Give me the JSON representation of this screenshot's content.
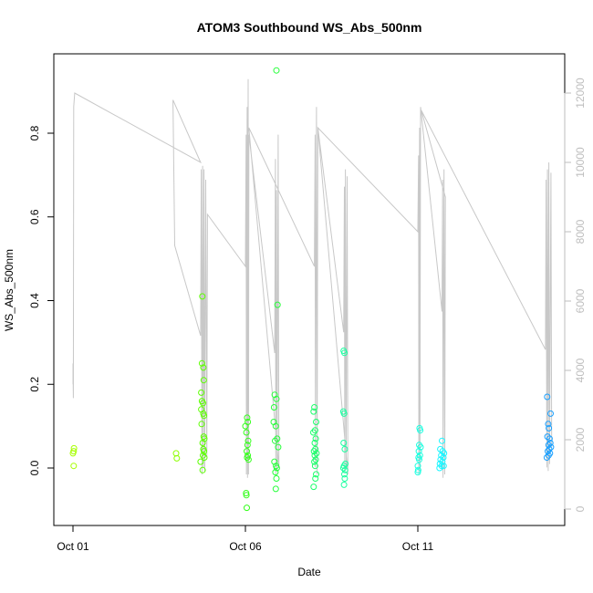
{
  "chart_data": {
    "type": "scatter",
    "title": "ATOM3 Southbound WS_Abs_500nm",
    "xlabel": "Date",
    "ylabel": "WS_Abs_500nm",
    "x_ticks": [
      {
        "day": 1,
        "label": "Oct 01"
      },
      {
        "day": 6,
        "label": "Oct 06"
      },
      {
        "day": 11,
        "label": "Oct 11"
      }
    ],
    "xlim": [
      1,
      15.5
    ],
    "ylim": [
      -0.1,
      0.95
    ],
    "y_ticks": [
      0.0,
      0.2,
      0.4,
      0.6,
      0.8
    ],
    "y2lim": [
      0,
      12000
    ],
    "y2_ticks": [
      0,
      2000,
      4000,
      6000,
      8000,
      10000,
      12000
    ],
    "y2_color": "#bebebe",
    "grid": false,
    "points": [
      {
        "x": 1.0,
        "y": 0.035,
        "c": "#a6ff00"
      },
      {
        "x": 1.02,
        "y": 0.04,
        "c": "#a6ff00"
      },
      {
        "x": 1.03,
        "y": 0.047,
        "c": "#a6ff00"
      },
      {
        "x": 1.02,
        "y": 0.005,
        "c": "#a6ff00"
      },
      {
        "x": 3.99,
        "y": 0.035,
        "c": "#8cff00"
      },
      {
        "x": 4.01,
        "y": 0.023,
        "c": "#8cff00"
      },
      {
        "x": 4.7,
        "y": 0.015,
        "c": "#5cff00"
      },
      {
        "x": 4.75,
        "y": 0.41,
        "c": "#5cff00"
      },
      {
        "x": 4.74,
        "y": 0.25,
        "c": "#5cff00"
      },
      {
        "x": 4.78,
        "y": 0.24,
        "c": "#5cff00"
      },
      {
        "x": 4.79,
        "y": 0.21,
        "c": "#5cff00"
      },
      {
        "x": 4.72,
        "y": 0.18,
        "c": "#5cff00"
      },
      {
        "x": 4.74,
        "y": 0.16,
        "c": "#5cff00"
      },
      {
        "x": 4.77,
        "y": 0.155,
        "c": "#5cff00"
      },
      {
        "x": 4.72,
        "y": 0.14,
        "c": "#5cff00"
      },
      {
        "x": 4.78,
        "y": 0.13,
        "c": "#5cff00"
      },
      {
        "x": 4.8,
        "y": 0.125,
        "c": "#5cff00"
      },
      {
        "x": 4.73,
        "y": 0.105,
        "c": "#5cff00"
      },
      {
        "x": 4.79,
        "y": 0.075,
        "c": "#5cff00"
      },
      {
        "x": 4.81,
        "y": 0.07,
        "c": "#5cff00"
      },
      {
        "x": 4.76,
        "y": 0.06,
        "c": "#5cff00"
      },
      {
        "x": 4.78,
        "y": 0.045,
        "c": "#5cff00"
      },
      {
        "x": 4.8,
        "y": 0.04,
        "c": "#5cff00"
      },
      {
        "x": 4.77,
        "y": 0.03,
        "c": "#5cff00"
      },
      {
        "x": 4.81,
        "y": 0.025,
        "c": "#5cff00"
      },
      {
        "x": 4.76,
        "y": -0.005,
        "c": "#5cff00"
      },
      {
        "x": 6.0,
        "y": 0.1,
        "c": "#33ff1a"
      },
      {
        "x": 6.05,
        "y": 0.12,
        "c": "#33ff1a"
      },
      {
        "x": 6.07,
        "y": 0.11,
        "c": "#33ff1a"
      },
      {
        "x": 6.03,
        "y": 0.085,
        "c": "#33ff1a"
      },
      {
        "x": 6.08,
        "y": 0.065,
        "c": "#33ff1a"
      },
      {
        "x": 6.06,
        "y": 0.055,
        "c": "#33ff1a"
      },
      {
        "x": 6.04,
        "y": 0.04,
        "c": "#33ff1a"
      },
      {
        "x": 6.07,
        "y": 0.03,
        "c": "#33ff1a"
      },
      {
        "x": 6.05,
        "y": 0.025,
        "c": "#33ff1a"
      },
      {
        "x": 6.09,
        "y": 0.02,
        "c": "#33ff1a"
      },
      {
        "x": 6.02,
        "y": -0.06,
        "c": "#33ff1a"
      },
      {
        "x": 6.03,
        "y": -0.065,
        "c": "#33ff1a"
      },
      {
        "x": 6.04,
        "y": -0.095,
        "c": "#33ff1a"
      },
      {
        "x": 6.9,
        "y": 0.95,
        "c": "#26ff3a"
      },
      {
        "x": 6.85,
        "y": 0.175,
        "c": "#26ff3a"
      },
      {
        "x": 6.9,
        "y": 0.165,
        "c": "#26ff3a"
      },
      {
        "x": 6.83,
        "y": 0.145,
        "c": "#26ff3a"
      },
      {
        "x": 6.93,
        "y": 0.39,
        "c": "#26ff3a"
      },
      {
        "x": 6.82,
        "y": 0.11,
        "c": "#26ff3a"
      },
      {
        "x": 6.88,
        "y": 0.1,
        "c": "#26ff3a"
      },
      {
        "x": 6.92,
        "y": 0.07,
        "c": "#26ff3a"
      },
      {
        "x": 6.86,
        "y": 0.065,
        "c": "#26ff3a"
      },
      {
        "x": 6.95,
        "y": 0.05,
        "c": "#26ff3a"
      },
      {
        "x": 6.84,
        "y": 0.015,
        "c": "#26ff3a"
      },
      {
        "x": 6.89,
        "y": 0.005,
        "c": "#26ff3a"
      },
      {
        "x": 6.91,
        "y": 0.0,
        "c": "#26ff3a"
      },
      {
        "x": 6.87,
        "y": -0.01,
        "c": "#26ff3a"
      },
      {
        "x": 6.9,
        "y": -0.025,
        "c": "#26ff3a"
      },
      {
        "x": 6.88,
        "y": -0.05,
        "c": "#26ff3a"
      },
      {
        "x": 8.0,
        "y": 0.145,
        "c": "#1aff6a"
      },
      {
        "x": 7.98,
        "y": 0.135,
        "c": "#1aff6a"
      },
      {
        "x": 8.05,
        "y": 0.11,
        "c": "#1aff6a"
      },
      {
        "x": 8.02,
        "y": 0.09,
        "c": "#1aff6a"
      },
      {
        "x": 7.97,
        "y": 0.085,
        "c": "#1aff6a"
      },
      {
        "x": 8.04,
        "y": 0.07,
        "c": "#1aff6a"
      },
      {
        "x": 8.01,
        "y": 0.06,
        "c": "#1aff6a"
      },
      {
        "x": 8.03,
        "y": 0.045,
        "c": "#1aff6a"
      },
      {
        "x": 7.99,
        "y": 0.04,
        "c": "#1aff6a"
      },
      {
        "x": 8.06,
        "y": 0.035,
        "c": "#1aff6a"
      },
      {
        "x": 8.01,
        "y": 0.03,
        "c": "#1aff6a"
      },
      {
        "x": 8.04,
        "y": 0.02,
        "c": "#1aff6a"
      },
      {
        "x": 8.0,
        "y": 0.015,
        "c": "#1aff6a"
      },
      {
        "x": 8.02,
        "y": 0.005,
        "c": "#1aff6a"
      },
      {
        "x": 8.05,
        "y": -0.015,
        "c": "#1aff6a"
      },
      {
        "x": 8.03,
        "y": -0.025,
        "c": "#1aff6a"
      },
      {
        "x": 7.98,
        "y": -0.045,
        "c": "#1aff6a"
      },
      {
        "x": 8.85,
        "y": 0.28,
        "c": "#1affa0"
      },
      {
        "x": 8.87,
        "y": 0.275,
        "c": "#1affa0"
      },
      {
        "x": 8.84,
        "y": 0.135,
        "c": "#1affa0"
      },
      {
        "x": 8.86,
        "y": 0.13,
        "c": "#1affa0"
      },
      {
        "x": 8.85,
        "y": 0.06,
        "c": "#1affa0"
      },
      {
        "x": 8.88,
        "y": 0.045,
        "c": "#1affa0"
      },
      {
        "x": 8.9,
        "y": 0.01,
        "c": "#1affa0"
      },
      {
        "x": 8.86,
        "y": 0.005,
        "c": "#1affa0"
      },
      {
        "x": 8.84,
        "y": 0.0,
        "c": "#1affa0"
      },
      {
        "x": 8.89,
        "y": -0.005,
        "c": "#1affa0"
      },
      {
        "x": 8.87,
        "y": -0.015,
        "c": "#1affa0"
      },
      {
        "x": 8.88,
        "y": -0.025,
        "c": "#1affa0"
      },
      {
        "x": 8.86,
        "y": -0.04,
        "c": "#1affa0"
      },
      {
        "x": 11.05,
        "y": 0.095,
        "c": "#1affe0"
      },
      {
        "x": 11.07,
        "y": 0.09,
        "c": "#1affe0"
      },
      {
        "x": 11.04,
        "y": 0.055,
        "c": "#1affe0"
      },
      {
        "x": 11.08,
        "y": 0.05,
        "c": "#1affe0"
      },
      {
        "x": 11.03,
        "y": 0.04,
        "c": "#1affe0"
      },
      {
        "x": 11.06,
        "y": 0.03,
        "c": "#1affe0"
      },
      {
        "x": 11.02,
        "y": 0.025,
        "c": "#1affe0"
      },
      {
        "x": 11.04,
        "y": 0.02,
        "c": "#1affe0"
      },
      {
        "x": 11.0,
        "y": 0.005,
        "c": "#1affe0"
      },
      {
        "x": 11.01,
        "y": -0.005,
        "c": "#1affe0"
      },
      {
        "x": 11.0,
        "y": -0.01,
        "c": "#1affe0"
      },
      {
        "x": 11.7,
        "y": 0.065,
        "c": "#1af5ff"
      },
      {
        "x": 11.65,
        "y": 0.045,
        "c": "#1af5ff"
      },
      {
        "x": 11.72,
        "y": 0.04,
        "c": "#1af5ff"
      },
      {
        "x": 11.76,
        "y": 0.035,
        "c": "#1af5ff"
      },
      {
        "x": 11.68,
        "y": 0.03,
        "c": "#1af5ff"
      },
      {
        "x": 11.74,
        "y": 0.025,
        "c": "#1af5ff"
      },
      {
        "x": 11.66,
        "y": 0.02,
        "c": "#1af5ff"
      },
      {
        "x": 11.71,
        "y": 0.015,
        "c": "#1af5ff"
      },
      {
        "x": 11.64,
        "y": 0.01,
        "c": "#1af5ff"
      },
      {
        "x": 11.69,
        "y": 0.005,
        "c": "#1af5ff"
      },
      {
        "x": 11.75,
        "y": 0.005,
        "c": "#1af5ff"
      },
      {
        "x": 11.63,
        "y": 0.0,
        "c": "#1af5ff"
      },
      {
        "x": 14.75,
        "y": 0.17,
        "c": "#1aa0ff"
      },
      {
        "x": 14.78,
        "y": 0.105,
        "c": "#1aa0ff"
      },
      {
        "x": 14.85,
        "y": 0.13,
        "c": "#1aa0ff"
      },
      {
        "x": 14.8,
        "y": 0.095,
        "c": "#1aa0ff"
      },
      {
        "x": 14.76,
        "y": 0.075,
        "c": "#1aa0ff"
      },
      {
        "x": 14.82,
        "y": 0.07,
        "c": "#1aa0ff"
      },
      {
        "x": 14.84,
        "y": 0.06,
        "c": "#1aa0ff"
      },
      {
        "x": 14.79,
        "y": 0.055,
        "c": "#1aa0ff"
      },
      {
        "x": 14.86,
        "y": 0.05,
        "c": "#1aa0ff"
      },
      {
        "x": 14.81,
        "y": 0.045,
        "c": "#1aa0ff"
      },
      {
        "x": 14.77,
        "y": 0.04,
        "c": "#1aa0ff"
      },
      {
        "x": 14.83,
        "y": 0.035,
        "c": "#1aa0ff"
      },
      {
        "x": 14.79,
        "y": 0.03,
        "c": "#1aa0ff"
      },
      {
        "x": 14.74,
        "y": 0.025,
        "c": "#1aa0ff"
      }
    ],
    "altitude_line": [
      {
        "x": 1.0,
        "alt": 3600
      },
      {
        "x": 1.0,
        "alt": 4200
      },
      {
        "x": 1.01,
        "alt": 3200
      },
      {
        "x": 1.02,
        "alt": 11600
      },
      {
        "x": 1.05,
        "alt": 12000
      },
      {
        "x": 4.7,
        "alt": 10000
      },
      {
        "x": 3.9,
        "alt": 11800
      },
      {
        "x": 3.95,
        "alt": 7600
      },
      {
        "x": 4.7,
        "alt": 5000
      },
      {
        "x": 4.72,
        "alt": 9800
      },
      {
        "x": 4.74,
        "alt": 1000
      },
      {
        "x": 4.76,
        "alt": 9900
      },
      {
        "x": 4.78,
        "alt": 1200
      },
      {
        "x": 4.8,
        "alt": 9800
      },
      {
        "x": 4.82,
        "alt": 1100
      },
      {
        "x": 4.85,
        "alt": 9500
      },
      {
        "x": 4.88,
        "alt": 1500
      },
      {
        "x": 4.9,
        "alt": 8500
      },
      {
        "x": 6.0,
        "alt": 7000
      },
      {
        "x": 6.02,
        "alt": 10800
      },
      {
        "x": 6.03,
        "alt": 1000
      },
      {
        "x": 6.05,
        "alt": 11600
      },
      {
        "x": 6.06,
        "alt": 900
      },
      {
        "x": 6.08,
        "alt": 12400
      },
      {
        "x": 6.09,
        "alt": 1000
      },
      {
        "x": 6.1,
        "alt": 10800
      },
      {
        "x": 6.85,
        "alt": 4500
      },
      {
        "x": 6.87,
        "alt": 10100
      },
      {
        "x": 6.88,
        "alt": 1000
      },
      {
        "x": 6.9,
        "alt": 9200
      },
      {
        "x": 6.92,
        "alt": 1100
      },
      {
        "x": 6.95,
        "alt": 10800
      },
      {
        "x": 6.97,
        "alt": 1200
      },
      {
        "x": 6.1,
        "alt": 11000
      },
      {
        "x": 8.0,
        "alt": 7000
      },
      {
        "x": 8.02,
        "alt": 10800
      },
      {
        "x": 8.03,
        "alt": 1200
      },
      {
        "x": 8.06,
        "alt": 11600
      },
      {
        "x": 8.08,
        "alt": 1000
      },
      {
        "x": 8.1,
        "alt": 11000
      },
      {
        "x": 8.85,
        "alt": 5100
      },
      {
        "x": 8.87,
        "alt": 9300
      },
      {
        "x": 8.88,
        "alt": 1100
      },
      {
        "x": 8.9,
        "alt": 9800
      },
      {
        "x": 8.92,
        "alt": 1200
      },
      {
        "x": 8.95,
        "alt": 9600
      },
      {
        "x": 8.97,
        "alt": 1000
      },
      {
        "x": 8.1,
        "alt": 11000
      },
      {
        "x": 11.0,
        "alt": 8000
      },
      {
        "x": 11.02,
        "alt": 10200
      },
      {
        "x": 11.03,
        "alt": 1000
      },
      {
        "x": 11.05,
        "alt": 11000
      },
      {
        "x": 11.06,
        "alt": 1100
      },
      {
        "x": 11.08,
        "alt": 11600
      },
      {
        "x": 11.7,
        "alt": 5700
      },
      {
        "x": 11.72,
        "alt": 9500
      },
      {
        "x": 11.73,
        "alt": 900
      },
      {
        "x": 11.76,
        "alt": 9800
      },
      {
        "x": 11.78,
        "alt": 1000
      },
      {
        "x": 11.8,
        "alt": 9000
      },
      {
        "x": 11.1,
        "alt": 11500
      },
      {
        "x": 14.7,
        "alt": 4600
      },
      {
        "x": 14.72,
        "alt": 9500
      },
      {
        "x": 14.74,
        "alt": 1200
      },
      {
        "x": 14.76,
        "alt": 9800
      },
      {
        "x": 14.78,
        "alt": 1100
      },
      {
        "x": 14.8,
        "alt": 10000
      },
      {
        "x": 14.82,
        "alt": 1300
      },
      {
        "x": 14.86,
        "alt": 9700
      },
      {
        "x": 14.88,
        "alt": 1800
      }
    ]
  }
}
